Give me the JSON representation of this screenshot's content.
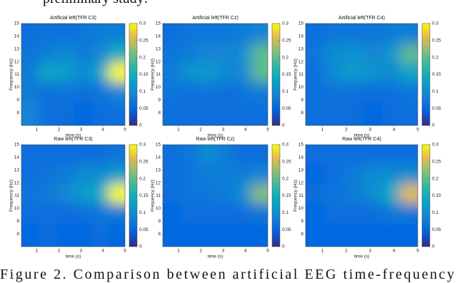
{
  "text_top": "preliminary study:",
  "caption": "Figure 2.   Comparison   between   artificial   EEG   time-frequency",
  "chart_data": [
    {
      "type": "heatmap",
      "title": "Artificial left(TFR C3)",
      "xlabel": "time (s)",
      "ylabel": "Frequency (Hz)",
      "xlim": [
        0.3,
        5
      ],
      "xticks": [
        1,
        2,
        3,
        4,
        5
      ],
      "ylim": [
        7,
        15
      ],
      "yticks": [
        8,
        9,
        10,
        11,
        12,
        13,
        14,
        15
      ],
      "clim": [
        0,
        0.3
      ],
      "cticks": [
        0,
        0.05,
        0.1,
        0.15,
        0.2,
        0.25,
        0.3
      ],
      "x": [
        0.7,
        1.5,
        2.3,
        3.1,
        3.9,
        4.6
      ],
      "y": [
        14.2,
        12.6,
        11.2,
        9.6,
        8.0
      ],
      "z": [
        [
          0.06,
          0.07,
          0.06,
          0.07,
          0.08,
          0.08
        ],
        [
          0.07,
          0.08,
          0.1,
          0.08,
          0.09,
          0.15
        ],
        [
          0.08,
          0.14,
          0.12,
          0.1,
          0.13,
          0.3
        ],
        [
          0.08,
          0.06,
          0.07,
          0.06,
          0.07,
          0.09
        ],
        [
          0.09,
          0.06,
          0.06,
          0.05,
          0.06,
          0.06
        ]
      ]
    },
    {
      "type": "heatmap",
      "title": "Artificial left(TFR Cz)",
      "xlabel": "time (s)",
      "ylabel": "Frequency (Hz)",
      "xlim": [
        0.3,
        5
      ],
      "xticks": [
        1,
        2,
        3,
        4,
        5
      ],
      "ylim": [
        7,
        15
      ],
      "yticks": [
        8,
        9,
        10,
        11,
        12,
        13,
        14,
        15
      ],
      "clim": [
        0,
        0.3
      ],
      "cticks": [
        0,
        0.05,
        0.1,
        0.15,
        0.2,
        0.25,
        0.3
      ],
      "x": [
        0.7,
        1.5,
        2.3,
        3.1,
        3.9,
        4.6
      ],
      "y": [
        14.2,
        12.6,
        11.2,
        9.6,
        8.0
      ],
      "z": [
        [
          0.06,
          0.07,
          0.07,
          0.07,
          0.08,
          0.09
        ],
        [
          0.07,
          0.08,
          0.09,
          0.09,
          0.1,
          0.2
        ],
        [
          0.08,
          0.11,
          0.12,
          0.1,
          0.09,
          0.2
        ],
        [
          0.07,
          0.06,
          0.07,
          0.06,
          0.07,
          0.08
        ],
        [
          0.06,
          0.06,
          0.06,
          0.06,
          0.06,
          0.06
        ]
      ]
    },
    {
      "type": "heatmap",
      "title": "Artificial left(TFR C4)",
      "xlabel": "time (s)",
      "ylabel": "Frequency (Hz)",
      "xlim": [
        0.3,
        5
      ],
      "xticks": [
        1,
        2,
        3,
        4,
        5
      ],
      "ylim": [
        7,
        15
      ],
      "yticks": [
        8,
        9,
        10,
        11,
        12,
        13,
        14,
        15
      ],
      "clim": [
        0,
        0.3
      ],
      "cticks": [
        0,
        0.05,
        0.1,
        0.15,
        0.2,
        0.25,
        0.3
      ],
      "x": [
        0.7,
        1.5,
        2.3,
        3.1,
        3.9,
        4.6
      ],
      "y": [
        14.2,
        12.6,
        11.2,
        9.6,
        8.0
      ],
      "z": [
        [
          0.06,
          0.07,
          0.07,
          0.07,
          0.08,
          0.08
        ],
        [
          0.07,
          0.1,
          0.11,
          0.09,
          0.11,
          0.2
        ],
        [
          0.06,
          0.1,
          0.12,
          0.11,
          0.1,
          0.13
        ],
        [
          0.06,
          0.07,
          0.06,
          0.06,
          0.06,
          0.07
        ],
        [
          0.06,
          0.06,
          0.06,
          0.05,
          0.06,
          0.06
        ]
      ]
    },
    {
      "type": "heatmap",
      "title": "Raw left(TFR C3)",
      "xlabel": "time (s)",
      "ylabel": "Frequency (Hz)",
      "xlim": [
        0.3,
        5
      ],
      "xticks": [
        1,
        2,
        3,
        4,
        5
      ],
      "ylim": [
        7,
        15
      ],
      "yticks": [
        8,
        9,
        10,
        11,
        12,
        13,
        14,
        15
      ],
      "clim": [
        0,
        0.3
      ],
      "cticks": [
        0,
        0.05,
        0.1,
        0.15,
        0.2,
        0.25,
        0.3
      ],
      "x": [
        0.7,
        1.5,
        2.3,
        3.1,
        3.9,
        4.6
      ],
      "y": [
        14.2,
        12.6,
        11.2,
        9.6,
        8.0
      ],
      "z": [
        [
          0.06,
          0.06,
          0.06,
          0.06,
          0.06,
          0.07
        ],
        [
          0.06,
          0.07,
          0.08,
          0.1,
          0.1,
          0.12
        ],
        [
          0.07,
          0.08,
          0.09,
          0.12,
          0.14,
          0.3
        ],
        [
          0.06,
          0.06,
          0.06,
          0.06,
          0.07,
          0.07
        ],
        [
          0.05,
          0.06,
          0.05,
          0.05,
          0.06,
          0.05
        ]
      ]
    },
    {
      "type": "heatmap",
      "title": "Raw left(TFR Cz)",
      "xlabel": "time (s)",
      "ylabel": "Frequency (Hz)",
      "xlim": [
        0.3,
        5
      ],
      "xticks": [
        1,
        2,
        3,
        4,
        5
      ],
      "ylim": [
        7,
        15
      ],
      "yticks": [
        8,
        9,
        10,
        11,
        12,
        13,
        14,
        15
      ],
      "clim": [
        0,
        0.3
      ],
      "cticks": [
        0,
        0.05,
        0.1,
        0.15,
        0.2,
        0.25,
        0.3
      ],
      "x": [
        0.7,
        1.5,
        2.3,
        3.1,
        3.9,
        4.6
      ],
      "y": [
        14.2,
        12.6,
        11.2,
        9.6,
        8.0
      ],
      "z": [
        [
          0.06,
          0.07,
          0.1,
          0.08,
          0.06,
          0.06
        ],
        [
          0.06,
          0.07,
          0.08,
          0.08,
          0.08,
          0.09
        ],
        [
          0.06,
          0.07,
          0.07,
          0.08,
          0.1,
          0.22
        ],
        [
          0.05,
          0.06,
          0.06,
          0.06,
          0.06,
          0.07
        ],
        [
          0.05,
          0.05,
          0.05,
          0.05,
          0.05,
          0.05
        ]
      ]
    },
    {
      "type": "heatmap",
      "title": "Raw left(TFR C4)",
      "xlabel": "time (s)",
      "ylabel": "Frequency (Hz)",
      "xlim": [
        0.3,
        5
      ],
      "xticks": [
        1,
        2,
        3,
        4,
        5
      ],
      "ylim": [
        7,
        15
      ],
      "yticks": [
        8,
        9,
        10,
        11,
        12,
        13,
        14,
        15
      ],
      "clim": [
        0,
        0.3
      ],
      "cticks": [
        0,
        0.05,
        0.1,
        0.15,
        0.2,
        0.25,
        0.3
      ],
      "x": [
        0.7,
        1.5,
        2.3,
        3.1,
        3.9,
        4.6
      ],
      "y": [
        14.2,
        12.6,
        11.2,
        9.6,
        8.0
      ],
      "z": [
        [
          0.06,
          0.06,
          0.06,
          0.06,
          0.06,
          0.06
        ],
        [
          0.05,
          0.06,
          0.08,
          0.1,
          0.1,
          0.1
        ],
        [
          0.06,
          0.07,
          0.08,
          0.1,
          0.14,
          0.26
        ],
        [
          0.05,
          0.06,
          0.06,
          0.06,
          0.07,
          0.07
        ],
        [
          0.05,
          0.05,
          0.05,
          0.05,
          0.05,
          0.05
        ]
      ]
    }
  ]
}
